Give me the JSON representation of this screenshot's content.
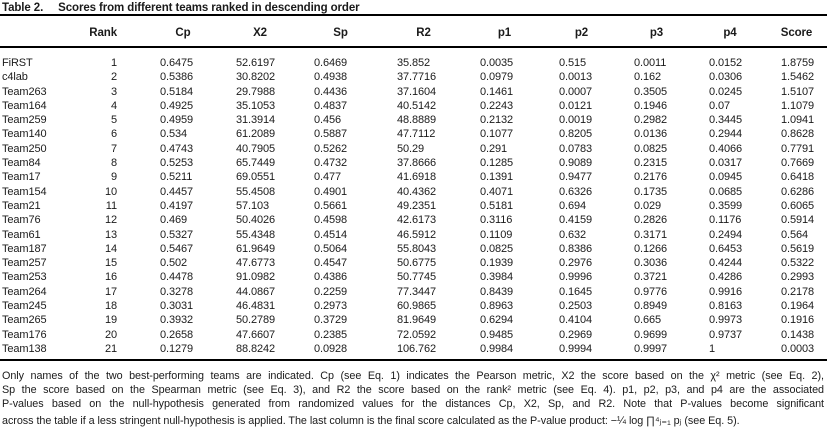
{
  "page": {
    "background": "#ffffff",
    "text_color": "#1b1b1b",
    "rule_color": "#000000"
  },
  "table": {
    "label": "Table 2.",
    "title": "Scores from different teams ranked in descending order",
    "columns": [
      "",
      "Rank",
      "Cp",
      "X2",
      "Sp",
      "R2",
      "p1",
      "p2",
      "p3",
      "p4",
      "Score"
    ],
    "rows": [
      [
        "FiRST",
        "1",
        "0.6475",
        "52.6197",
        "0.6469",
        "35.852",
        "0.0035",
        "0.515",
        "0.0011",
        "0.0152",
        "1.8759"
      ],
      [
        "c4lab",
        "2",
        "0.5386",
        "30.8202",
        "0.4938",
        "37.7716",
        "0.0979",
        "0.0013",
        "0.162",
        "0.0306",
        "1.5462"
      ],
      [
        "Team263",
        "3",
        "0.5184",
        "29.7988",
        "0.4436",
        "37.1604",
        "0.1461",
        "0.0007",
        "0.3505",
        "0.0245",
        "1.5107"
      ],
      [
        "Team164",
        "4",
        "0.4925",
        "35.1053",
        "0.4837",
        "40.5142",
        "0.2243",
        "0.0121",
        "0.1946",
        "0.07",
        "1.1079"
      ],
      [
        "Team259",
        "5",
        "0.4959",
        "31.3914",
        "0.456",
        "48.8889",
        "0.2132",
        "0.0019",
        "0.2982",
        "0.3445",
        "1.0941"
      ],
      [
        "Team140",
        "6",
        "0.534",
        "61.2089",
        "0.5887",
        "47.7112",
        "0.1077",
        "0.8205",
        "0.0136",
        "0.2944",
        "0.8628"
      ],
      [
        "Team250",
        "7",
        "0.4743",
        "40.7905",
        "0.5262",
        "50.29",
        "0.291",
        "0.0783",
        "0.0825",
        "0.4066",
        "0.7791"
      ],
      [
        "Team84",
        "8",
        "0.5253",
        "65.7449",
        "0.4732",
        "37.8666",
        "0.1285",
        "0.9089",
        "0.2315",
        "0.0317",
        "0.7669"
      ],
      [
        "Team17",
        "9",
        "0.5211",
        "69.0551",
        "0.477",
        "41.6918",
        "0.1391",
        "0.9477",
        "0.2176",
        "0.0945",
        "0.6418"
      ],
      [
        "Team154",
        "10",
        "0.4457",
        "55.4508",
        "0.4901",
        "40.4362",
        "0.4071",
        "0.6326",
        "0.1735",
        "0.0685",
        "0.6286"
      ],
      [
        "Team21",
        "11",
        "0.4197",
        "57.103",
        "0.5661",
        "49.2351",
        "0.5181",
        "0.694",
        "0.029",
        "0.3599",
        "0.6065"
      ],
      [
        "Team76",
        "12",
        "0.469",
        "50.4026",
        "0.4598",
        "42.6173",
        "0.3116",
        "0.4159",
        "0.2826",
        "0.1176",
        "0.5914"
      ],
      [
        "Team61",
        "13",
        "0.5327",
        "55.4348",
        "0.4514",
        "46.5912",
        "0.1109",
        "0.632",
        "0.3171",
        "0.2494",
        "0.564"
      ],
      [
        "Team187",
        "14",
        "0.5467",
        "61.9649",
        "0.5064",
        "55.8043",
        "0.0825",
        "0.8386",
        "0.1266",
        "0.6453",
        "0.5619"
      ],
      [
        "Team257",
        "15",
        "0.502",
        "47.6773",
        "0.4547",
        "50.6775",
        "0.1939",
        "0.2976",
        "0.3036",
        "0.4244",
        "0.5322"
      ],
      [
        "Team253",
        "16",
        "0.4478",
        "91.0982",
        "0.4386",
        "50.7745",
        "0.3984",
        "0.9996",
        "0.3721",
        "0.4286",
        "0.2993"
      ],
      [
        "Team264",
        "17",
        "0.3278",
        "44.0867",
        "0.2259",
        "77.3447",
        "0.8439",
        "0.1645",
        "0.9776",
        "0.9916",
        "0.2178"
      ],
      [
        "Team245",
        "18",
        "0.3031",
        "46.4831",
        "0.2973",
        "60.9865",
        "0.8963",
        "0.2503",
        "0.8949",
        "0.8163",
        "0.1964"
      ],
      [
        "Team265",
        "19",
        "0.3932",
        "50.2789",
        "0.3729",
        "81.9649",
        "0.6294",
        "0.4104",
        "0.665",
        "0.9973",
        "0.1916"
      ],
      [
        "Team176",
        "20",
        "0.2658",
        "47.6607",
        "0.2385",
        "72.0592",
        "0.9485",
        "0.2969",
        "0.9699",
        "0.9737",
        "0.1438"
      ],
      [
        "Team138",
        "21",
        "0.1279",
        "88.8242",
        "0.0928",
        "106.762",
        "0.9984",
        "0.9994",
        "0.9997",
        "1",
        "0.0003"
      ]
    ]
  },
  "footnote": {
    "lines": [
      "Only names of the two best-performing teams are indicated. Cp (see Eq. 1) indicates the Pearson metric, X2 the score based on the χ² metric (see Eq. 2),",
      "Sp the score based on the Spearman metric (see Eq. 3), and R2 the score based on the rank² metric (see Eq. 4). p1, p2, p3, and p4 are the associated",
      "P-values based on the null-hypothesis generated from randomized values for the distances Cp, X2, Sp, and R2. Note that P-values become significant",
      "across the table if a less stringent null-hypothesis is applied. The last column is the final score calculated as the P-value product: −¼ log ∏⁴ⱼ₌₁ pⱼ (see Eq. 5)."
    ]
  }
}
